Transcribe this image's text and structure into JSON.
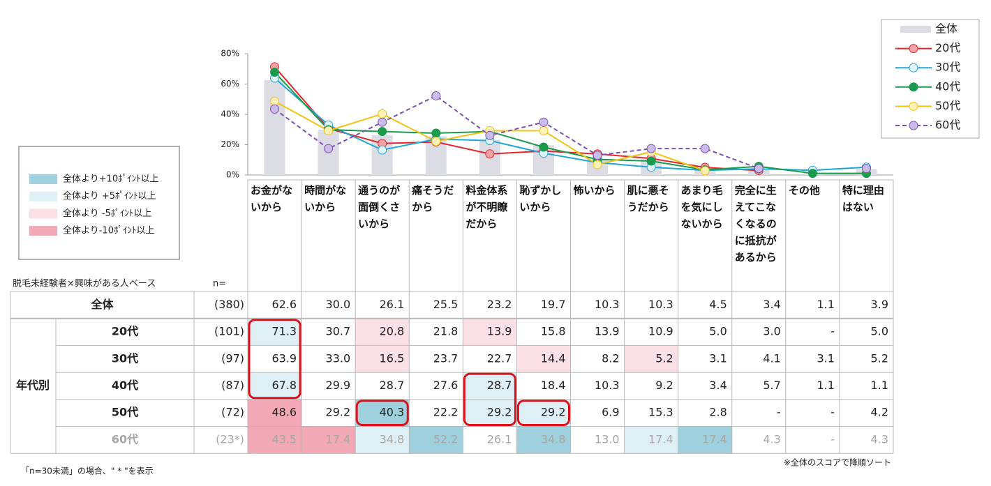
{
  "chart_data": {
    "type": "combo",
    "categories": [
      "お金がないから",
      "時間がないから",
      "通うのが面倒くさいから",
      "痛そうだから",
      "料金体系が不明瞭だから",
      "恥ずかしいから",
      "怖いから",
      "肌に悪そうだから",
      "あまり毛を気にしないから",
      "完全に生えてこなくなるのに抵抗があるから",
      "その他",
      "特に理由はない"
    ],
    "ylim": [
      0,
      80
    ],
    "yticks": [
      {
        "value": 0,
        "label": "0%"
      },
      {
        "value": 20,
        "label": "20%"
      },
      {
        "value": 40,
        "label": "40%"
      },
      {
        "value": 60,
        "label": "60%"
      },
      {
        "value": 80,
        "label": "80%"
      }
    ],
    "legend_position": "top-right",
    "series": [
      {
        "name": "全体",
        "type": "bar",
        "color": "#dcdce4",
        "n": "(380)",
        "values": [
          62.6,
          30.0,
          26.1,
          25.5,
          23.2,
          19.7,
          10.3,
          10.3,
          4.5,
          3.4,
          1.1,
          3.9
        ],
        "value_labels": [
          "62.6",
          "30.0",
          "26.1",
          "25.5",
          "23.2",
          "19.7",
          "10.3",
          "10.3",
          "4.5",
          "3.4",
          "1.1",
          "3.9"
        ]
      },
      {
        "name": "20代",
        "type": "line",
        "color": "#e8242b",
        "marker_fill": "#f4a3a8",
        "n": "(101)",
        "values": [
          71.3,
          30.7,
          20.8,
          21.8,
          13.9,
          15.8,
          13.9,
          10.9,
          5.0,
          3.0,
          null,
          5.0
        ],
        "value_labels": [
          "71.3",
          "30.7",
          "20.8",
          "21.8",
          "13.9",
          "15.8",
          "13.9",
          "10.9",
          "5.0",
          "3.0",
          "-",
          "5.0"
        ]
      },
      {
        "name": "30代",
        "type": "line",
        "color": "#1ea7d6",
        "marker_fill": "#dff4fb",
        "n": "(97)",
        "values": [
          63.9,
          33.0,
          16.5,
          23.7,
          22.7,
          14.4,
          8.2,
          5.2,
          3.1,
          4.1,
          3.1,
          5.2
        ],
        "value_labels": [
          "63.9",
          "33.0",
          "16.5",
          "23.7",
          "22.7",
          "14.4",
          "8.2",
          "5.2",
          "3.1",
          "4.1",
          "3.1",
          "5.2"
        ]
      },
      {
        "name": "40代",
        "type": "line",
        "color": "#1a9a4c",
        "marker_fill": "#1a9a4c",
        "n": "(87)",
        "values": [
          67.8,
          29.9,
          28.7,
          27.6,
          28.7,
          18.4,
          10.3,
          9.2,
          3.4,
          5.7,
          1.1,
          1.1
        ],
        "value_labels": [
          "67.8",
          "29.9",
          "28.7",
          "27.6",
          "28.7",
          "18.4",
          "10.3",
          "9.2",
          "3.4",
          "5.7",
          "1.1",
          "1.1"
        ]
      },
      {
        "name": "50代",
        "type": "line",
        "color": "#f3c312",
        "marker_fill": "#fdf1b8",
        "n": "(72)",
        "values": [
          48.6,
          29.2,
          40.3,
          22.2,
          29.2,
          29.2,
          6.9,
          15.3,
          2.8,
          null,
          null,
          4.2
        ],
        "value_labels": [
          "48.6",
          "29.2",
          "40.3",
          "22.2",
          "29.2",
          "29.2",
          "6.9",
          "15.3",
          "2.8",
          "-",
          "-",
          "4.2"
        ]
      },
      {
        "name": "60代",
        "type": "line",
        "color": "#7a4fb3",
        "marker_fill": "#cbbbea",
        "dashed": true,
        "muted": true,
        "n": "(23*)",
        "values": [
          43.5,
          17.4,
          34.8,
          52.2,
          26.1,
          34.8,
          13.0,
          17.4,
          17.4,
          4.3,
          null,
          4.3
        ],
        "value_labels": [
          "43.5",
          "17.4",
          "34.8",
          "52.2",
          "26.1",
          "34.8",
          "13.0",
          "17.4",
          "17.4",
          "4.3",
          "-",
          "4.3"
        ]
      }
    ]
  },
  "shade_legend": [
    {
      "label": "全体より+10ﾎﾟｲﾝﾄ以上",
      "color": "#9ed0dd"
    },
    {
      "label": "全体より +5ﾎﾟｲﾝﾄ以上",
      "color": "#def0f5"
    },
    {
      "label": "全体より -5ﾎﾟｲﾝﾄ以上",
      "color": "#fbe1e5"
    },
    {
      "label": "全体より-10ﾎﾟｲﾝﾄ以上",
      "color": "#f2a9b5"
    }
  ],
  "table": {
    "base_note": "脱毛未経験者×興味がある人ベース",
    "n_header": "n=",
    "group_label": "年代別",
    "shading": [
      null,
      [
        1,
        null,
        2,
        null,
        2,
        null,
        null,
        null,
        null,
        null,
        null,
        null
      ],
      [
        null,
        null,
        2,
        null,
        null,
        2,
        null,
        2,
        null,
        null,
        null,
        null
      ],
      [
        1,
        null,
        null,
        null,
        1,
        null,
        null,
        null,
        null,
        null,
        null,
        null
      ],
      [
        3,
        null,
        0,
        null,
        1,
        1,
        null,
        null,
        null,
        null,
        null,
        null
      ],
      [
        3,
        3,
        1,
        0,
        null,
        0,
        null,
        1,
        0,
        null,
        null,
        null
      ]
    ],
    "callouts": [
      {
        "col": 0,
        "rows": [
          1,
          3
        ]
      },
      {
        "col": 2,
        "rows": [
          4,
          4
        ]
      },
      {
        "col": 4,
        "rows": [
          3,
          4
        ]
      },
      {
        "col": 5,
        "rows": [
          4,
          4
        ]
      }
    ]
  },
  "footnotes": {
    "left": "「n=30未満」の場合、\" * \"を表示",
    "right": "※全体のスコアで降順ソート"
  }
}
